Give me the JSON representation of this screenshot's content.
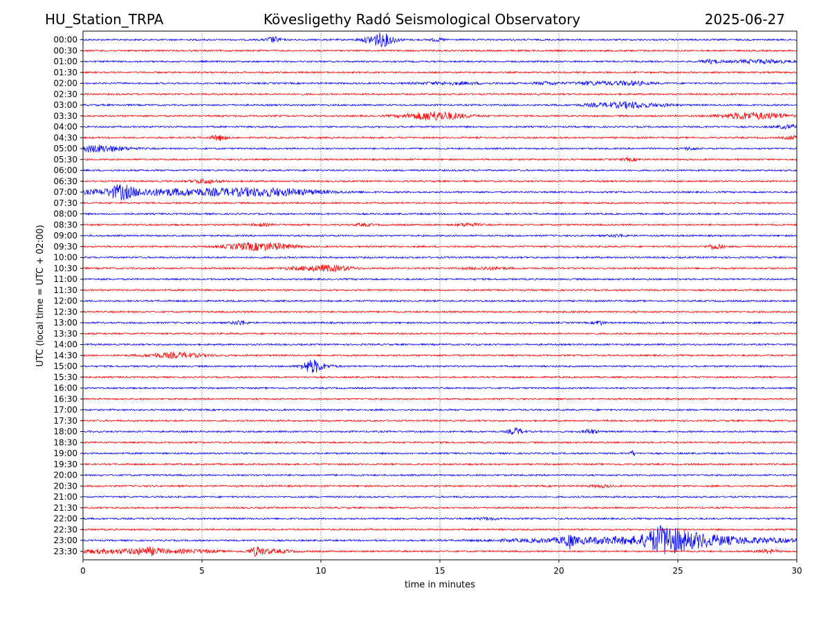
{
  "header": {
    "station": "HU_Station_TRPA",
    "title": "Kövesligethy Radó Seismological Observatory",
    "date": "2025-06-27"
  },
  "chart_data": {
    "type": "line",
    "title": "Kövesligethy Radó Seismological Observatory",
    "xlabel": "time in minutes",
    "ylabel": "UTC (local time = UTC + 02:00)",
    "xlim": [
      0,
      30
    ],
    "xticks": [
      0,
      5,
      10,
      15,
      20,
      25,
      30
    ],
    "grid": "vertical dotted lines at x ticks",
    "trace_colors": [
      "#0000ff",
      "#ff0000"
    ],
    "rows": [
      {
        "label": "00:00",
        "color": "#0000ff",
        "events": [
          {
            "t": 8.0,
            "amp": 0.5,
            "dur": 0.3
          },
          {
            "t": 12.5,
            "amp": 1.2,
            "dur": 0.6
          },
          {
            "t": 14.9,
            "amp": 0.25,
            "dur": 0.3
          }
        ]
      },
      {
        "label": "00:30",
        "color": "#ff0000",
        "events": []
      },
      {
        "label": "01:00",
        "color": "#0000ff",
        "events": [
          {
            "t": 26.4,
            "amp": 0.3,
            "dur": 0.4
          },
          {
            "t": 28.5,
            "amp": 0.3,
            "dur": 1.2
          }
        ]
      },
      {
        "label": "01:30",
        "color": "#ff0000",
        "events": []
      },
      {
        "label": "02:00",
        "color": "#0000ff",
        "events": [
          {
            "t": 15.5,
            "amp": 0.2,
            "dur": 1.5
          },
          {
            "t": 19.5,
            "amp": 0.25,
            "dur": 0.5
          },
          {
            "t": 21.4,
            "amp": 0.3,
            "dur": 0.8
          },
          {
            "t": 23.0,
            "amp": 0.35,
            "dur": 0.8
          }
        ]
      },
      {
        "label": "02:30",
        "color": "#ff0000",
        "events": []
      },
      {
        "label": "03:00",
        "color": "#0000ff",
        "events": [
          {
            "t": 22.0,
            "amp": 0.3,
            "dur": 1.0
          },
          {
            "t": 23.2,
            "amp": 0.45,
            "dur": 0.8
          },
          {
            "t": 24.5,
            "amp": 0.15,
            "dur": 0.5
          }
        ]
      },
      {
        "label": "03:30",
        "color": "#ff0000",
        "events": [
          {
            "t": 14.8,
            "amp": 0.8,
            "dur": 1.2
          },
          {
            "t": 28.0,
            "amp": 0.6,
            "dur": 1.2
          },
          {
            "t": 29.3,
            "amp": 0.2,
            "dur": 0.6
          }
        ]
      },
      {
        "label": "04:00",
        "color": "#0000ff",
        "events": [
          {
            "t": 29.7,
            "amp": 0.3,
            "dur": 0.6
          }
        ]
      },
      {
        "label": "04:30",
        "color": "#ff0000",
        "events": [
          {
            "t": 5.7,
            "amp": 0.5,
            "dur": 0.3
          },
          {
            "t": 29.8,
            "amp": 0.3,
            "dur": 0.3
          }
        ]
      },
      {
        "label": "05:00",
        "color": "#0000ff",
        "events": [
          {
            "t": 0.6,
            "amp": 0.6,
            "dur": 1.2
          },
          {
            "t": 25.5,
            "amp": 0.2,
            "dur": 0.3
          }
        ]
      },
      {
        "label": "05:30",
        "color": "#ff0000",
        "events": [
          {
            "t": 23.0,
            "amp": 0.2,
            "dur": 0.4
          }
        ]
      },
      {
        "label": "06:00",
        "color": "#0000ff",
        "events": []
      },
      {
        "label": "06:30",
        "color": "#ff0000",
        "events": [
          {
            "t": 5.1,
            "amp": 0.35,
            "dur": 0.6
          }
        ]
      },
      {
        "label": "07:00",
        "color": "#0000ff",
        "events": [
          {
            "t": 1.6,
            "amp": 0.9,
            "dur": 0.5
          },
          {
            "t": 3.8,
            "amp": 0.6,
            "dur": 4.5
          },
          {
            "t": 8.0,
            "amp": 0.45,
            "dur": 2.0
          }
        ]
      },
      {
        "label": "07:30",
        "color": "#ff0000",
        "events": []
      },
      {
        "label": "08:00",
        "color": "#0000ff",
        "events": []
      },
      {
        "label": "08:30",
        "color": "#ff0000",
        "events": [
          {
            "t": 7.5,
            "amp": 0.2,
            "dur": 0.4
          },
          {
            "t": 11.8,
            "amp": 0.2,
            "dur": 0.4
          },
          {
            "t": 16.2,
            "amp": 0.25,
            "dur": 0.5
          }
        ]
      },
      {
        "label": "09:00",
        "color": "#0000ff",
        "events": [
          {
            "t": 22.5,
            "amp": 0.2,
            "dur": 0.4
          }
        ]
      },
      {
        "label": "09:30",
        "color": "#ff0000",
        "events": [
          {
            "t": 7.0,
            "amp": 0.6,
            "dur": 1.0
          },
          {
            "t": 8.2,
            "amp": 0.4,
            "dur": 0.8
          },
          {
            "t": 26.6,
            "amp": 0.5,
            "dur": 0.3
          }
        ]
      },
      {
        "label": "10:00",
        "color": "#0000ff",
        "events": []
      },
      {
        "label": "10:30",
        "color": "#ff0000",
        "events": [
          {
            "t": 9.5,
            "amp": 0.3,
            "dur": 1.0
          },
          {
            "t": 10.5,
            "amp": 0.4,
            "dur": 0.8
          },
          {
            "t": 17.0,
            "amp": 0.2,
            "dur": 0.8
          }
        ]
      },
      {
        "label": "11:00",
        "color": "#0000ff",
        "events": []
      },
      {
        "label": "11:30",
        "color": "#ff0000",
        "events": []
      },
      {
        "label": "12:00",
        "color": "#0000ff",
        "events": []
      },
      {
        "label": "12:30",
        "color": "#ff0000",
        "events": []
      },
      {
        "label": "13:00",
        "color": "#0000ff",
        "events": [
          {
            "t": 6.6,
            "amp": 0.4,
            "dur": 0.3
          },
          {
            "t": 21.7,
            "amp": 0.4,
            "dur": 0.2
          }
        ]
      },
      {
        "label": "13:30",
        "color": "#ff0000",
        "events": []
      },
      {
        "label": "14:00",
        "color": "#0000ff",
        "events": []
      },
      {
        "label": "14:30",
        "color": "#ff0000",
        "events": [
          {
            "t": 3.9,
            "amp": 0.45,
            "dur": 1.2
          }
        ]
      },
      {
        "label": "15:00",
        "color": "#0000ff",
        "events": [
          {
            "t": 9.6,
            "amp": 1.0,
            "dur": 0.4
          },
          {
            "t": 10.0,
            "amp": 0.3,
            "dur": 0.6
          }
        ]
      },
      {
        "label": "15:30",
        "color": "#ff0000",
        "events": []
      },
      {
        "label": "16:00",
        "color": "#0000ff",
        "events": []
      },
      {
        "label": "16:30",
        "color": "#ff0000",
        "events": []
      },
      {
        "label": "17:00",
        "color": "#0000ff",
        "events": []
      },
      {
        "label": "17:30",
        "color": "#ff0000",
        "events": []
      },
      {
        "label": "18:00",
        "color": "#0000ff",
        "events": [
          {
            "t": 18.2,
            "amp": 0.6,
            "dur": 0.3
          },
          {
            "t": 21.3,
            "amp": 0.4,
            "dur": 0.3
          }
        ]
      },
      {
        "label": "18:30",
        "color": "#ff0000",
        "events": []
      },
      {
        "label": "19:00",
        "color": "#0000ff",
        "events": [
          {
            "t": 23.1,
            "amp": 0.5,
            "dur": 0.1
          }
        ]
      },
      {
        "label": "19:30",
        "color": "#ff0000",
        "events": []
      },
      {
        "label": "20:00",
        "color": "#0000ff",
        "events": []
      },
      {
        "label": "20:30",
        "color": "#ff0000",
        "events": [
          {
            "t": 21.8,
            "amp": 0.2,
            "dur": 0.4
          }
        ]
      },
      {
        "label": "21:00",
        "color": "#0000ff",
        "events": []
      },
      {
        "label": "21:30",
        "color": "#ff0000",
        "events": []
      },
      {
        "label": "22:00",
        "color": "#0000ff",
        "events": [
          {
            "t": 17.0,
            "amp": 0.2,
            "dur": 0.4
          }
        ]
      },
      {
        "label": "22:30",
        "color": "#ff0000",
        "events": []
      },
      {
        "label": "23:00",
        "color": "#0000ff",
        "events": [
          {
            "t": 20.4,
            "amp": 1.1,
            "dur": 0.2
          },
          {
            "t": 22.5,
            "amp": 0.6,
            "dur": 4.0
          },
          {
            "t": 24.4,
            "amp": 1.8,
            "dur": 0.7
          },
          {
            "t": 25.5,
            "amp": 0.9,
            "dur": 1.3
          },
          {
            "t": 28.0,
            "amp": 0.4,
            "dur": 2.5
          }
        ]
      },
      {
        "label": "23:30",
        "color": "#ff0000",
        "events": [
          {
            "t": 1.5,
            "amp": 0.35,
            "dur": 2.5
          },
          {
            "t": 2.8,
            "amp": 0.4,
            "dur": 0.6
          },
          {
            "t": 4.8,
            "amp": 0.2,
            "dur": 1.0
          },
          {
            "t": 7.3,
            "amp": 0.7,
            "dur": 0.3
          },
          {
            "t": 8.0,
            "amp": 0.3,
            "dur": 0.8
          },
          {
            "t": 28.8,
            "amp": 0.3,
            "dur": 0.4
          }
        ]
      }
    ]
  }
}
